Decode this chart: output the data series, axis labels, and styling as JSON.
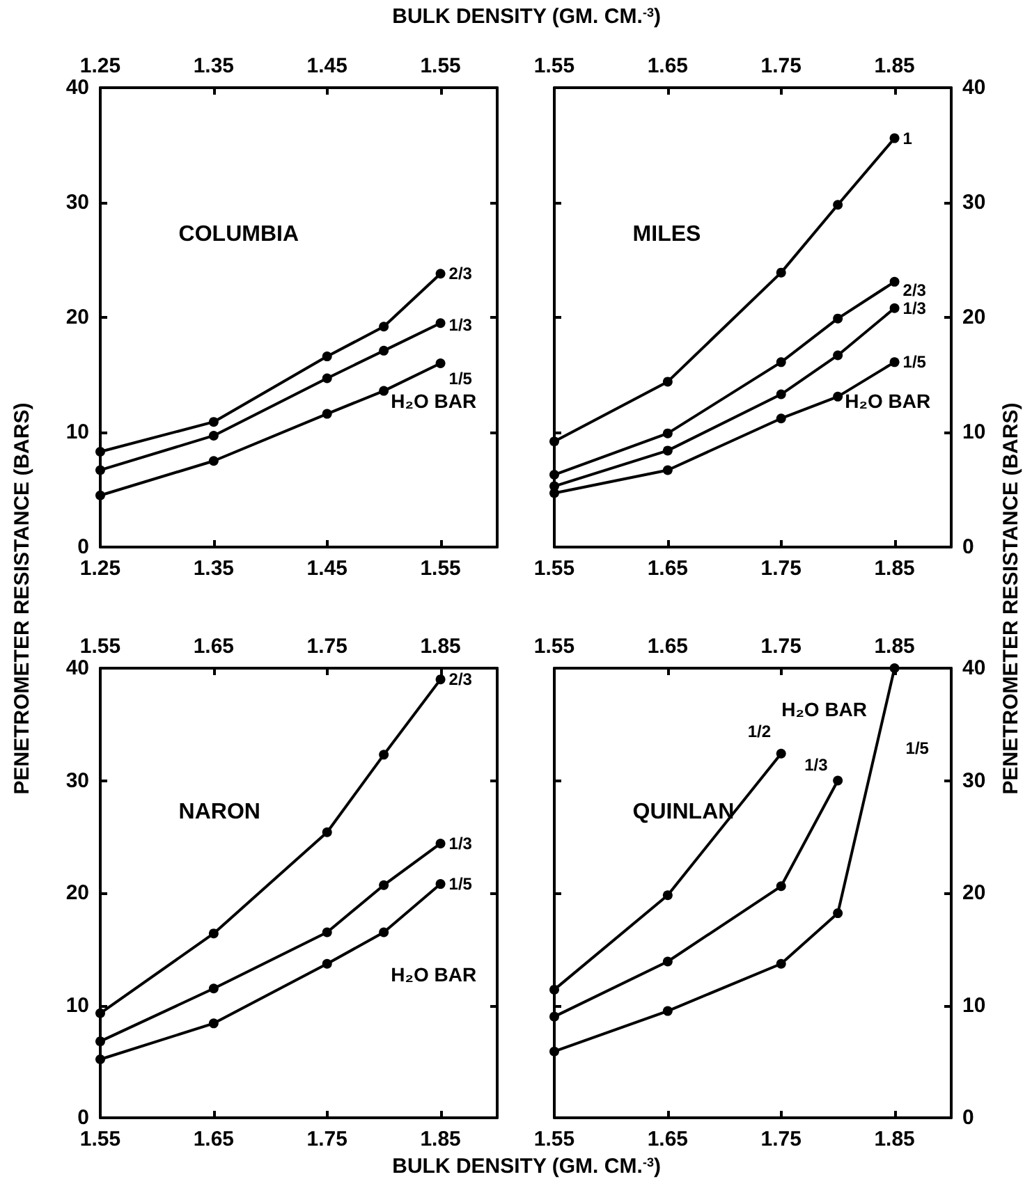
{
  "chart_data": [
    {
      "type": "line",
      "title": "COLUMBIA",
      "x2label": "BULK DENSITY (GM. CM.$^{-3}$)",
      "ylabel": "PENETROMETER RESISTANCE (BARS)",
      "x": [
        1.25,
        1.35,
        1.45,
        1.5,
        1.55
      ],
      "xlim": [
        1.25,
        1.6
      ],
      "xticks": [
        1.25,
        1.35,
        1.45,
        1.55
      ],
      "x2lim": [
        1.25,
        1.6
      ],
      "x2ticks": [
        1.25,
        1.35,
        1.45,
        1.55
      ],
      "ylim": [
        0,
        40
      ],
      "yticks": [
        0,
        10,
        20,
        30,
        40
      ],
      "marker": "circle",
      "annotations": [
        "H₂O BAR"
      ],
      "series": [
        {
          "name": "2/3",
          "color": "#000000",
          "values": [
            8.3,
            10.9,
            16.6,
            19.2,
            23.8
          ]
        },
        {
          "name": "1/3",
          "color": "#000000",
          "values": [
            6.7,
            9.7,
            14.7,
            17.1,
            19.5
          ]
        },
        {
          "name": "1/5",
          "color": "#000000",
          "values": [
            4.5,
            7.5,
            11.6,
            13.6,
            16.0
          ]
        }
      ]
    },
    {
      "type": "line",
      "title": "MILES",
      "x": [
        1.55,
        1.65,
        1.75,
        1.8,
        1.85
      ],
      "xlim": [
        1.55,
        1.9
      ],
      "xticks": [
        1.55,
        1.65,
        1.75,
        1.85
      ],
      "x2lim": [
        1.55,
        1.9
      ],
      "x2ticks": [
        1.55,
        1.65,
        1.75,
        1.85
      ],
      "y2lim": [
        0,
        40
      ],
      "y2ticks": [
        0,
        10,
        20,
        30,
        40
      ],
      "marker": "circle",
      "annotations": [
        "H₂O BAR"
      ],
      "series": [
        {
          "name": "1",
          "color": "#000000",
          "axis": "y2",
          "values": [
            9.2,
            14.4,
            23.9,
            29.8,
            35.6
          ]
        },
        {
          "name": "2/3",
          "color": "#000000",
          "axis": "y2",
          "values": [
            6.3,
            9.9,
            16.1,
            19.9,
            23.1
          ]
        },
        {
          "name": "1/3",
          "color": "#000000",
          "axis": "y2",
          "values": [
            5.3,
            8.4,
            13.3,
            16.7,
            20.8
          ]
        },
        {
          "name": "1/5",
          "color": "#000000",
          "axis": "y2",
          "values": [
            4.7,
            6.7,
            11.2,
            13.1,
            16.1
          ]
        }
      ]
    },
    {
      "type": "line",
      "title": "NARON",
      "xlabel": "BULK DENSITY (GM. CM.$^{-3}$)",
      "x": [
        1.55,
        1.65,
        1.75,
        1.8,
        1.85
      ],
      "xlim": [
        1.55,
        1.9
      ],
      "xticks": [
        1.55,
        1.65,
        1.75,
        1.85
      ],
      "x2lim": [
        1.55,
        1.9
      ],
      "x2ticks": [
        1.55,
        1.65,
        1.75,
        1.85
      ],
      "ylim": [
        0,
        40
      ],
      "yticks": [
        0,
        10,
        20,
        30,
        40
      ],
      "marker": "circle",
      "annotations": [
        "H₂O BAR"
      ],
      "series": [
        {
          "name": "2/3",
          "color": "#000000",
          "values": [
            9.3,
            16.4,
            25.4,
            32.3,
            39.0
          ]
        },
        {
          "name": "1/3",
          "color": "#000000",
          "values": [
            6.8,
            11.5,
            16.5,
            20.7,
            24.4
          ]
        },
        {
          "name": "1/5",
          "color": "#000000",
          "values": [
            5.2,
            8.4,
            13.7,
            16.5,
            20.8
          ]
        }
      ]
    },
    {
      "type": "line",
      "title": "QUINLAN",
      "y2label": "PENETROMETER RESISTANCE (BARS)",
      "xlim": [
        1.55,
        1.9
      ],
      "xticks": [
        1.55,
        1.65,
        1.75,
        1.85
      ],
      "x2lim": [
        1.55,
        1.9
      ],
      "x2ticks": [
        1.55,
        1.65,
        1.75,
        1.85
      ],
      "y2lim": [
        0,
        40
      ],
      "y2ticks": [
        0,
        10,
        20,
        30,
        40
      ],
      "marker": "circle",
      "annotations": [
        "H₂O BAR"
      ],
      "series": [
        {
          "name": "1/2",
          "color": "#000000",
          "axis": "y2",
          "x": [
            1.55,
            1.65,
            1.75
          ],
          "values": [
            11.4,
            19.8,
            32.4
          ]
        },
        {
          "name": "1/3",
          "color": "#000000",
          "axis": "y2",
          "x": [
            1.55,
            1.65,
            1.75,
            1.8
          ],
          "values": [
            9.0,
            13.9,
            20.6,
            30.0
          ]
        },
        {
          "name": "1/5",
          "color": "#000000",
          "axis": "y2",
          "x": [
            1.55,
            1.65,
            1.75,
            1.8,
            1.85
          ],
          "values": [
            5.9,
            9.5,
            13.7,
            18.2,
            40.0
          ]
        }
      ]
    }
  ]
}
